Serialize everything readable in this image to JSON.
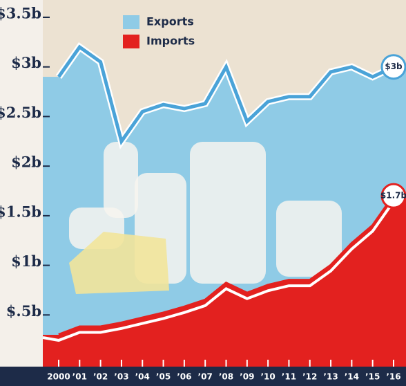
{
  "chart_data": {
    "type": "area-line",
    "categories": [
      "2000",
      "’01",
      "’02",
      "’03",
      "’04",
      "’05",
      "’06",
      "’07",
      "’08",
      "’09",
      "’10",
      "’11",
      "’12",
      "’13",
      "’14",
      "’15",
      "’16"
    ],
    "series": [
      {
        "name": "Exports",
        "color": "#4aa3d8",
        "values": [
          2.9,
          3.2,
          3.05,
          2.25,
          2.55,
          2.62,
          2.58,
          2.63,
          3.0,
          2.45,
          2.65,
          2.7,
          2.7,
          2.95,
          3.0,
          2.9,
          3.0
        ],
        "value_labels": [
          null,
          null,
          null,
          null,
          null,
          null,
          null,
          null,
          null,
          null,
          null,
          null,
          null,
          null,
          null,
          null,
          "$3b"
        ]
      },
      {
        "name": "Imports",
        "color": "#e3211f",
        "values": [
          0.3,
          0.38,
          0.38,
          0.42,
          0.47,
          0.52,
          0.58,
          0.65,
          0.82,
          0.72,
          0.8,
          0.85,
          0.85,
          1.0,
          1.22,
          1.4,
          1.7
        ],
        "value_labels": [
          null,
          null,
          null,
          null,
          null,
          null,
          null,
          null,
          null,
          null,
          null,
          null,
          null,
          null,
          null,
          null,
          "$1.7b"
        ]
      }
    ],
    "ylim": [
      0,
      3.5
    ],
    "yticks": [
      {
        "value": 0.5,
        "label": "$.5b"
      },
      {
        "value": 1,
        "label": "$1b"
      },
      {
        "value": 1.5,
        "label": "$1.5b"
      },
      {
        "value": 2,
        "label": "$2b"
      },
      {
        "value": 2.5,
        "label": "$2.5b"
      },
      {
        "value": 3,
        "label": "$3b"
      },
      {
        "value": 3.5,
        "label": "$3.5b"
      }
    ]
  }
}
